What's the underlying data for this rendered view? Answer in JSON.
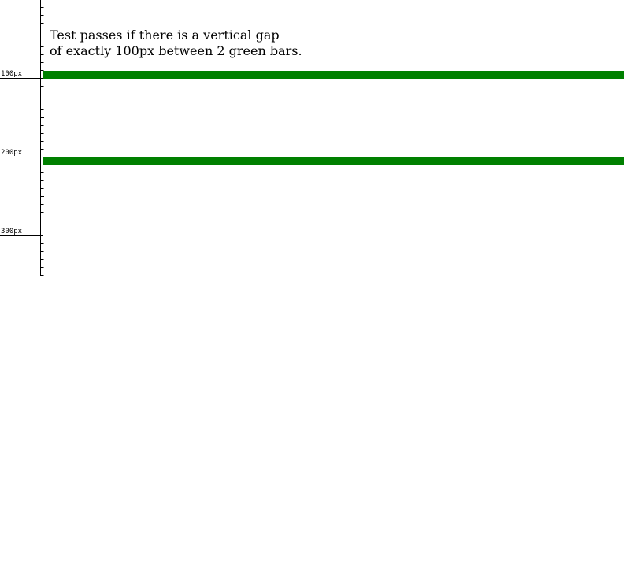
{
  "instructions": {
    "line1": "Test passes if there is a vertical gap",
    "line2": "of exactly 100px between 2 green bars."
  },
  "ruler": {
    "labels": [
      "100px",
      "200px",
      "300px"
    ]
  },
  "colors": {
    "bar": "#008000",
    "ruler": "#000000"
  }
}
